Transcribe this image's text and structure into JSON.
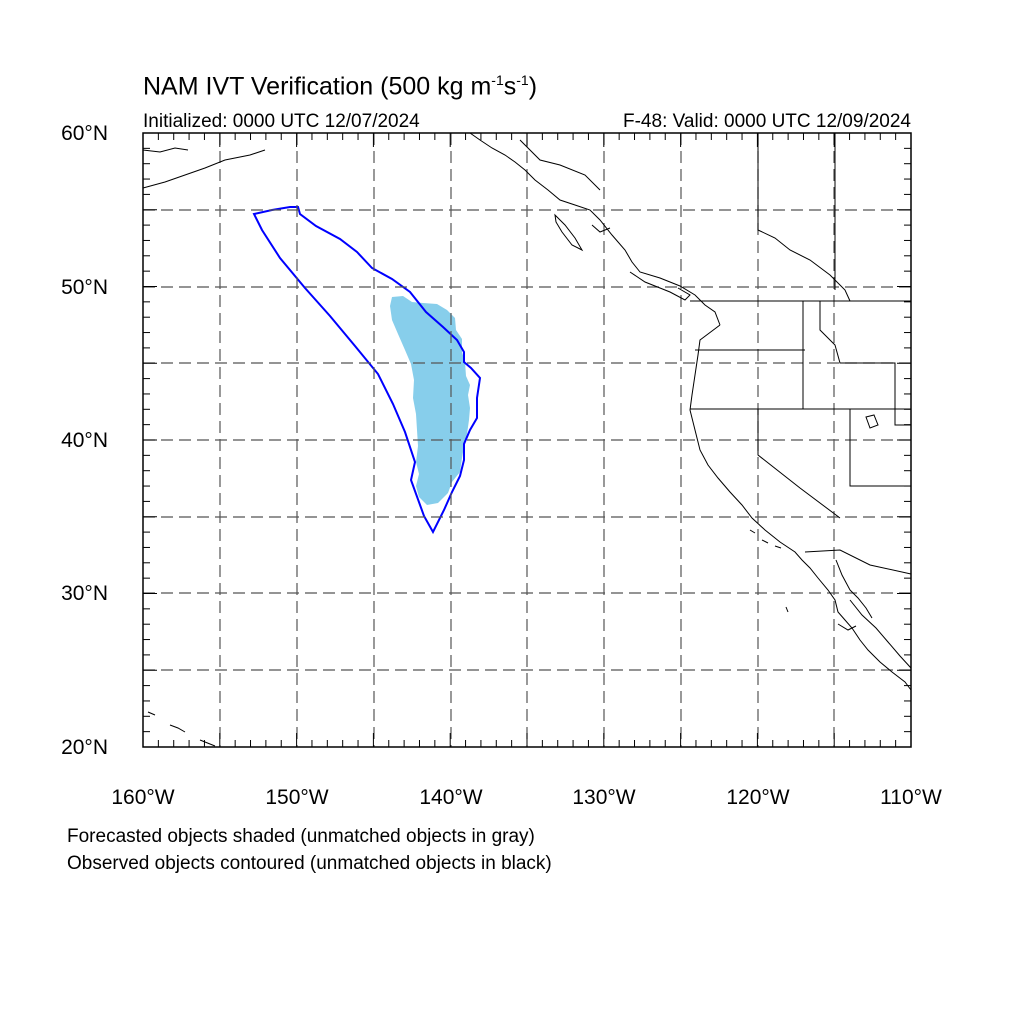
{
  "title": {
    "main": "NAM IVT Verification (500 kg m",
    "sup1": "-1",
    "mid": "s",
    "sup2": "-1",
    "end": ")"
  },
  "subtitle_left": "Initialized: 0000 UTC 12/07/2024",
  "subtitle_right": "F-48: Valid: 0000 UTC 12/09/2024",
  "lat_labels": [
    "60°N",
    "50°N",
    "40°N",
    "30°N",
    "20°N"
  ],
  "lon_labels": [
    "160°W",
    "150°W",
    "140°W",
    "130°W",
    "120°W",
    "110°W"
  ],
  "notes": [
    "Forecasted objects shaded (unmatched objects in gray)",
    "Observed objects contoured (unmatched objects in black)"
  ],
  "colors": {
    "forecast_fill": "#87ceeb",
    "observed_contour": "#0000ff",
    "coastline": "#000000",
    "grid": "#555555"
  },
  "map": {
    "lon_range": [
      -160,
      -110
    ],
    "lat_range": [
      20,
      60
    ],
    "gridlines": "dashed every 5 degrees"
  }
}
